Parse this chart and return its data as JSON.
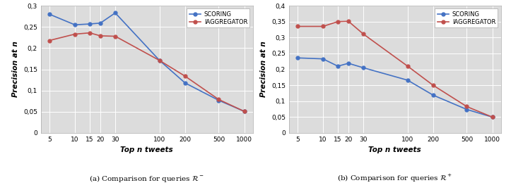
{
  "x_ticks": [
    5,
    10,
    15,
    20,
    30,
    100,
    200,
    500,
    1000
  ],
  "left": {
    "scoring": [
      0.28,
      0.255,
      0.257,
      0.259,
      0.283,
      0.171,
      0.118,
      0.077,
      0.051
    ],
    "iaggregator": [
      0.218,
      0.233,
      0.236,
      0.229,
      0.228,
      0.171,
      0.134,
      0.079,
      0.051
    ],
    "ylim": [
      0,
      0.3
    ],
    "yticks": [
      0,
      0.05,
      0.1,
      0.15,
      0.2,
      0.25,
      0.3
    ],
    "ytick_labels": [
      "0",
      "0,05",
      "0,1",
      "0,15",
      "0,2",
      "0,25",
      "0,3"
    ],
    "title": "(a) Comparison for queries $\\mathcal{R}^-$"
  },
  "right": {
    "scoring": [
      0.236,
      0.233,
      0.21,
      0.219,
      0.205,
      0.166,
      0.119,
      0.074,
      0.05
    ],
    "iaggregator": [
      0.335,
      0.335,
      0.35,
      0.351,
      0.311,
      0.21,
      0.15,
      0.083,
      0.05
    ],
    "ylim": [
      0,
      0.4
    ],
    "yticks": [
      0,
      0.05,
      0.1,
      0.15,
      0.2,
      0.25,
      0.3,
      0.35,
      0.4
    ],
    "ytick_labels": [
      "0",
      "0,05",
      "0,1",
      "0,15",
      "0,2",
      "0,25",
      "0,3",
      "0,35",
      "0,4"
    ],
    "title": "(b) Comparison for queries $\\mathcal{R}^+$"
  },
  "color_scoring": "#4472C4",
  "color_iaggregator": "#C0504D",
  "xlabel": "Top n tweets",
  "ylabel": "Precision at n",
  "legend_scoring": "SCORING",
  "legend_iaggregator": "IAGGREGATOR",
  "background_color": "#DCDCDC"
}
